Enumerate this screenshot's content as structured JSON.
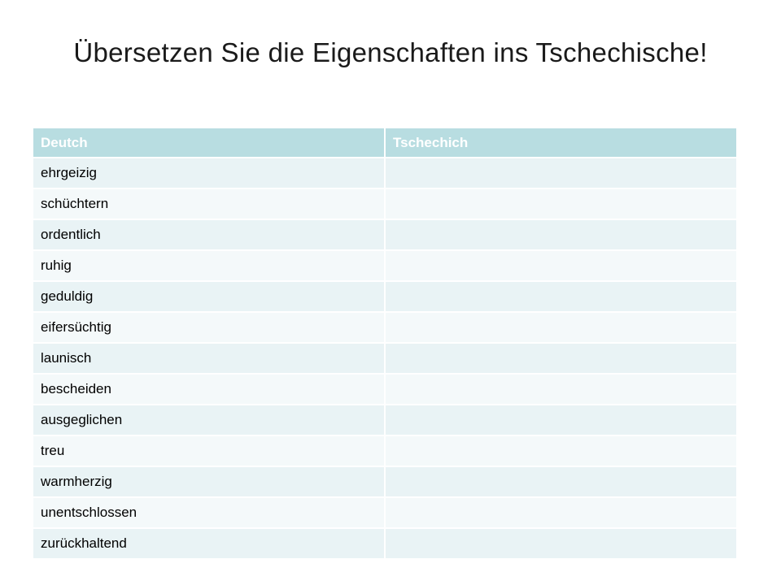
{
  "title": "Übersetzen Sie die Eigenschaften ins Tschechische!",
  "table": {
    "headers": [
      "Deutch",
      "Tschechich"
    ],
    "rows": [
      [
        "ehrgeizig",
        ""
      ],
      [
        "schüchtern",
        ""
      ],
      [
        "ordentlich",
        ""
      ],
      [
        "ruhig",
        ""
      ],
      [
        "geduldig",
        ""
      ],
      [
        "eifersüchtig",
        ""
      ],
      [
        "launisch",
        ""
      ],
      [
        "bescheiden",
        ""
      ],
      [
        "ausgeglichen",
        ""
      ],
      [
        "treu",
        ""
      ],
      [
        "warmherzig",
        ""
      ],
      [
        "unentschlossen",
        ""
      ],
      [
        "zurückhaltend",
        ""
      ]
    ]
  },
  "colors": {
    "header_bg": "#b8dde1",
    "row_odd_bg": "#e9f3f5",
    "row_even_bg": "#f4f9fa"
  }
}
